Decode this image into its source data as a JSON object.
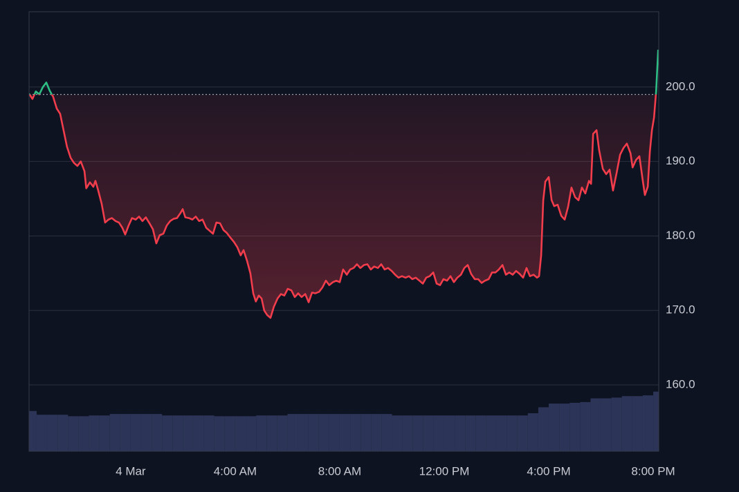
{
  "chart_data": {
    "type": "line",
    "x": [
      -3.89,
      -3.76,
      -3.63,
      -3.5,
      -3.36,
      -3.23,
      -3.1,
      -2.97,
      -2.83,
      -2.7,
      -2.57,
      -2.44,
      -2.3,
      -2.17,
      -2.04,
      -1.91,
      -1.77,
      -1.7,
      -1.56,
      -1.43,
      -1.35,
      -1.25,
      -1.11,
      -0.98,
      -0.85,
      -0.72,
      -0.58,
      -0.45,
      -0.32,
      -0.21,
      -0.08,
      0.05,
      0.19,
      0.32,
      0.45,
      0.58,
      0.72,
      0.85,
      0.98,
      1.11,
      1.25,
      1.38,
      1.51,
      1.64,
      1.77,
      1.91,
      1.99,
      2.09,
      2.23,
      2.36,
      2.49,
      2.62,
      2.75,
      2.89,
      3.02,
      3.15,
      3.28,
      3.42,
      3.55,
      3.68,
      3.81,
      3.95,
      4.08,
      4.21,
      4.32,
      4.45,
      4.58,
      4.69,
      4.79,
      4.9,
      5.01,
      5.11,
      5.22,
      5.35,
      5.48,
      5.62,
      5.75,
      5.88,
      6.01,
      6.15,
      6.28,
      6.41,
      6.54,
      6.68,
      6.81,
      6.94,
      7.07,
      7.21,
      7.34,
      7.47,
      7.6,
      7.74,
      7.87,
      8.0,
      8.13,
      8.27,
      8.4,
      8.53,
      8.66,
      8.79,
      8.93,
      9.06,
      9.19,
      9.32,
      9.46,
      9.59,
      9.72,
      9.85,
      9.99,
      10.12,
      10.25,
      10.38,
      10.52,
      10.65,
      10.78,
      10.91,
      11.05,
      11.18,
      11.31,
      11.44,
      11.58,
      11.71,
      11.84,
      11.97,
      12.11,
      12.24,
      12.37,
      12.5,
      12.64,
      12.77,
      12.9,
      13.03,
      13.17,
      13.3,
      13.43,
      13.56,
      13.7,
      13.83,
      13.96,
      14.09,
      14.23,
      14.36,
      14.49,
      14.62,
      14.75,
      14.89,
      15.02,
      15.15,
      15.28,
      15.42,
      15.55,
      15.63,
      15.71,
      15.79,
      15.87,
      16.0,
      16.11,
      16.21,
      16.34,
      16.48,
      16.61,
      16.74,
      16.87,
      17.01,
      17.14,
      17.27,
      17.4,
      17.54,
      17.62,
      17.7,
      17.83,
      17.93,
      18.07,
      18.2,
      18.33,
      18.46,
      18.6,
      18.73,
      18.86,
      18.99,
      19.13,
      19.21,
      19.34,
      19.47,
      19.6,
      19.68,
      19.79,
      19.87,
      19.95,
      20.03,
      20.11,
      20.19
    ],
    "values": [
      199.1,
      198.4,
      199.4,
      199.0,
      200.0,
      200.6,
      199.5,
      198.7,
      197.1,
      196.4,
      194.2,
      192.0,
      190.5,
      189.8,
      189.4,
      190.0,
      188.7,
      186.4,
      187.2,
      186.6,
      187.4,
      186.2,
      184.3,
      181.8,
      182.2,
      182.4,
      182.0,
      181.8,
      181.1,
      180.2,
      181.4,
      182.4,
      182.2,
      182.6,
      182.0,
      182.5,
      181.7,
      180.9,
      179.0,
      180.1,
      180.3,
      181.4,
      182.0,
      182.3,
      182.4,
      183.1,
      183.6,
      182.5,
      182.4,
      182.2,
      182.6,
      182.0,
      182.2,
      181.1,
      180.7,
      180.3,
      181.8,
      181.7,
      180.8,
      180.4,
      179.8,
      179.2,
      178.5,
      177.4,
      178.1,
      176.7,
      175.0,
      172.3,
      171.2,
      172.0,
      171.6,
      170.0,
      169.4,
      169.0,
      170.5,
      171.6,
      172.2,
      172.0,
      172.9,
      172.7,
      171.8,
      172.3,
      171.8,
      172.2,
      171.1,
      172.4,
      172.3,
      172.5,
      173.1,
      174.0,
      173.4,
      173.8,
      174.0,
      173.8,
      175.5,
      174.8,
      175.5,
      175.7,
      176.2,
      175.7,
      176.1,
      176.2,
      175.5,
      175.9,
      175.7,
      176.2,
      175.5,
      175.7,
      175.3,
      174.8,
      174.4,
      174.6,
      174.4,
      174.6,
      174.2,
      174.4,
      174.0,
      173.6,
      174.4,
      174.6,
      175.1,
      173.6,
      173.4,
      174.2,
      174.0,
      174.6,
      173.8,
      174.4,
      174.8,
      175.7,
      176.1,
      174.9,
      174.2,
      174.2,
      173.7,
      174.0,
      174.2,
      175.1,
      175.1,
      175.5,
      176.1,
      174.8,
      175.1,
      174.8,
      175.3,
      174.9,
      174.4,
      175.7,
      174.6,
      174.8,
      174.4,
      174.6,
      177.4,
      184.8,
      187.3,
      187.9,
      184.8,
      184.0,
      184.2,
      182.7,
      182.2,
      183.9,
      186.5,
      185.2,
      184.8,
      186.5,
      185.7,
      187.4,
      187.0,
      193.7,
      194.2,
      191.5,
      189.0,
      188.3,
      188.9,
      186.1,
      188.5,
      190.9,
      191.8,
      192.4,
      191.1,
      189.2,
      190.2,
      190.7,
      187.4,
      185.5,
      186.6,
      191.3,
      194.2,
      195.9,
      199.4,
      205.0
    ],
    "baseline": 199.0,
    "color_above": "#2ebd85",
    "color_below": "#f23d4c",
    "volume": {
      "color": "#2c3557",
      "x": [
        -3.8,
        -3.4,
        -3.0,
        -2.6,
        -2.2,
        -1.8,
        -1.4,
        -1.0,
        -0.6,
        -0.2,
        0.2,
        0.6,
        1.0,
        1.4,
        1.8,
        2.2,
        2.6,
        3.0,
        3.4,
        3.8,
        4.2,
        4.6,
        5.0,
        5.4,
        5.8,
        6.2,
        6.6,
        7.0,
        7.4,
        7.8,
        8.2,
        8.6,
        9.0,
        9.4,
        9.8,
        10.2,
        10.6,
        11.0,
        11.4,
        11.8,
        12.2,
        12.6,
        13.0,
        13.4,
        13.8,
        14.2,
        14.6,
        15.0,
        15.4,
        15.8,
        16.2,
        16.6,
        17.0,
        17.4,
        17.8,
        18.2,
        18.6,
        19.0,
        19.4,
        19.8,
        20.2
      ],
      "values": [
        156.5,
        156.0,
        156.0,
        156.0,
        155.8,
        155.8,
        155.9,
        155.9,
        156.1,
        156.1,
        156.1,
        156.1,
        156.1,
        155.9,
        155.9,
        155.9,
        155.9,
        155.9,
        155.8,
        155.8,
        155.8,
        155.8,
        155.9,
        155.9,
        155.9,
        156.1,
        156.1,
        156.1,
        156.1,
        156.1,
        156.1,
        156.1,
        156.1,
        156.1,
        156.1,
        155.9,
        155.9,
        155.9,
        155.9,
        155.9,
        155.9,
        155.9,
        155.9,
        155.9,
        155.9,
        155.9,
        155.9,
        155.9,
        156.2,
        157.0,
        157.5,
        157.5,
        157.6,
        157.7,
        158.2,
        158.2,
        158.3,
        158.5,
        158.5,
        158.6,
        159.1
      ]
    },
    "xlim": [
      -3.89,
      20.21
    ],
    "ylim": [
      151.1,
      210.1
    ],
    "xticks": [
      {
        "value": 0,
        "label": "4 Mar"
      },
      {
        "value": 4,
        "label": "4:00 AM"
      },
      {
        "value": 8,
        "label": "8:00 AM"
      },
      {
        "value": 12,
        "label": "12:00 PM"
      },
      {
        "value": 16,
        "label": "4:00 PM"
      },
      {
        "value": 20,
        "label": "8:00 PM"
      }
    ],
    "yticks": [
      {
        "value": 160,
        "label": "160.0"
      },
      {
        "value": 170,
        "label": "170.0"
      },
      {
        "value": 180,
        "label": "180.0"
      },
      {
        "value": 190,
        "label": "190.0"
      },
      {
        "value": 200,
        "label": "200.0"
      }
    ],
    "grid": true
  }
}
